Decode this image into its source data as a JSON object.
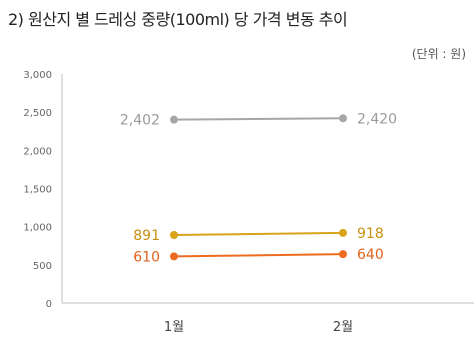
{
  "title": "2) 원산지 별 드레싱 중량(100ml) 당 가격 변동 추이",
  "unit_note": "(단위 : 원)",
  "chart_data": {
    "type": "line",
    "categories": [
      "1월",
      "2월"
    ],
    "ylim": [
      0,
      3000
    ],
    "yticks": [
      "0",
      "500",
      "1,000",
      "1,500",
      "2,000",
      "2,500",
      "3,000"
    ],
    "ytick_values": [
      0,
      500,
      1000,
      1500,
      2000,
      2500,
      3000
    ],
    "series": [
      {
        "values": [
          2402,
          2420
        ],
        "labels": [
          "2,402",
          "2,420"
        ],
        "color": "#a6a6a6",
        "label_color": "#9a9a9a"
      },
      {
        "values": [
          891,
          918
        ],
        "labels": [
          "891",
          "918"
        ],
        "color": "#d9a31a",
        "label_color": "#c8900f"
      },
      {
        "values": [
          610,
          640
        ],
        "labels": [
          "610",
          "640"
        ],
        "color": "#ed6b1f",
        "label_color": "#e0621b"
      }
    ],
    "grid": false
  }
}
